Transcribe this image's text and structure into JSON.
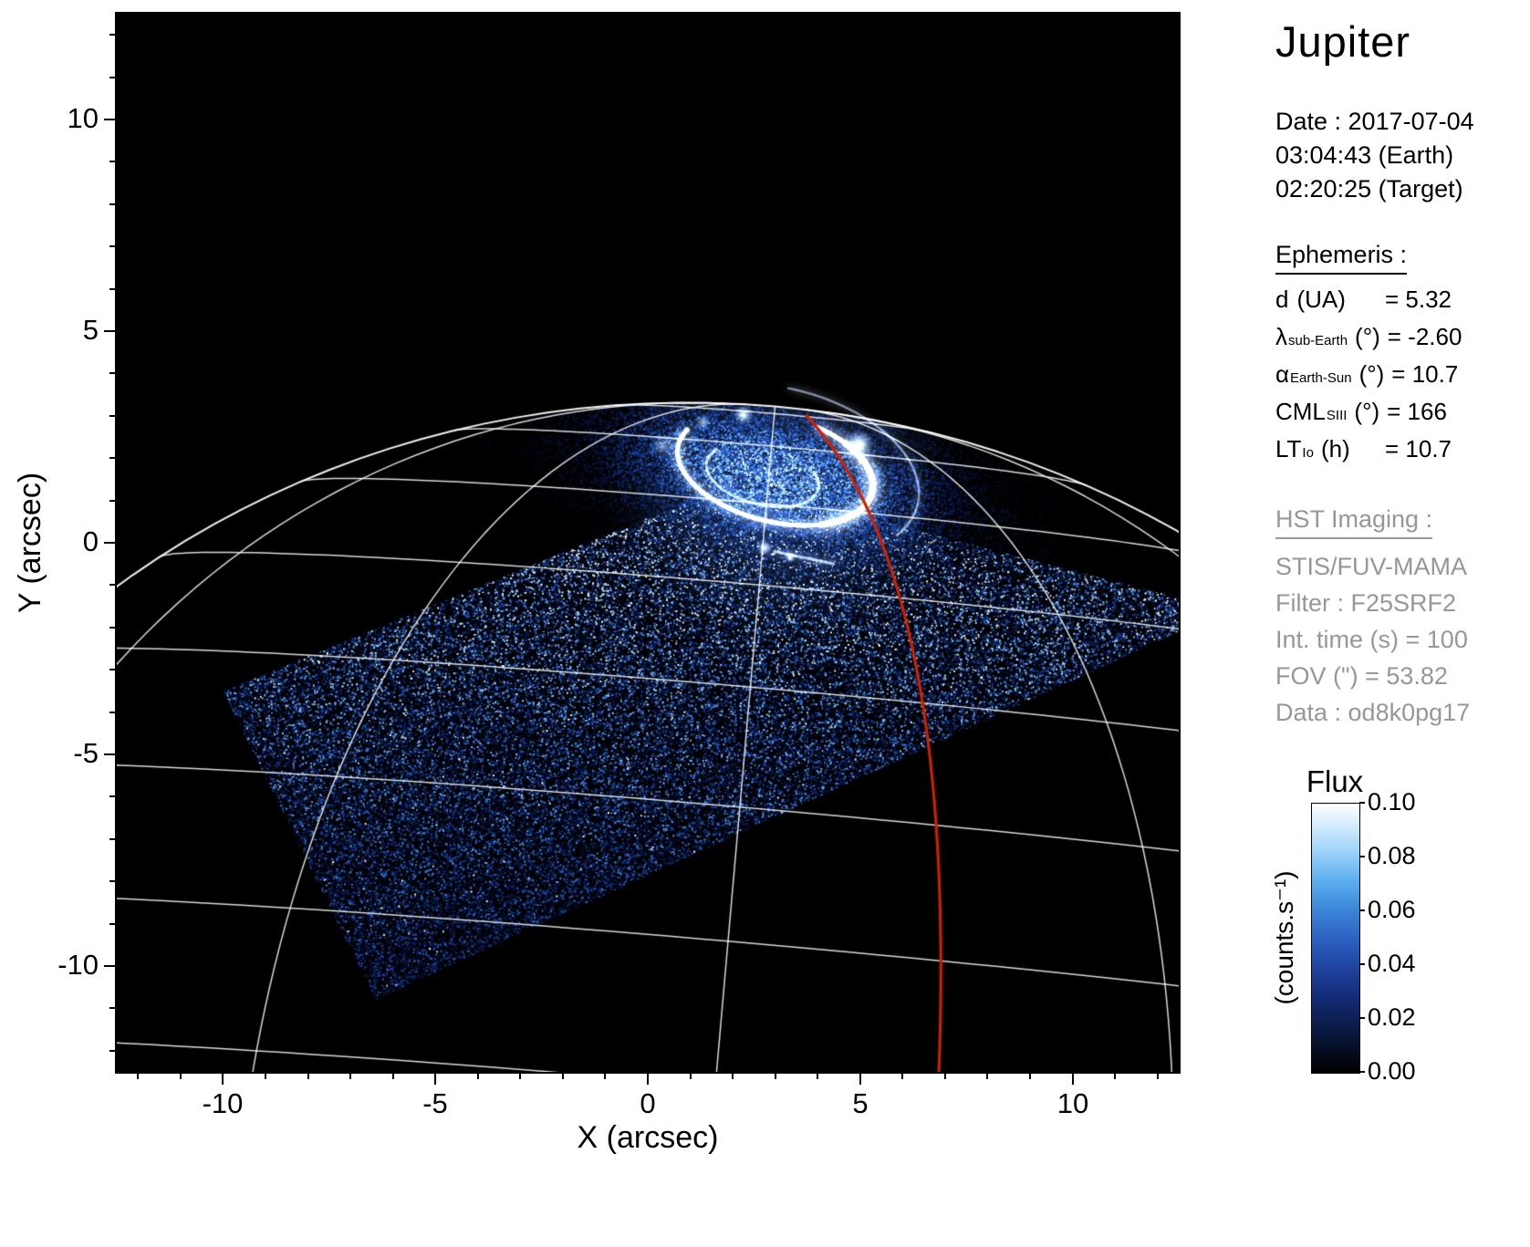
{
  "title": "Jupiter",
  "observation": {
    "date_line": "Date : 2017-07-04",
    "earth_time": "03:04:43 (Earth)",
    "target_time": "02:20:25 (Target)"
  },
  "ephemeris": {
    "heading": "Ephemeris :",
    "rows": [
      {
        "sym": "d",
        "sub": "",
        "unit": "(UA)",
        "val": "= 5.32"
      },
      {
        "sym": "λ",
        "sub": "sub-Earth",
        "unit": "(°)",
        "val": "= -2.60"
      },
      {
        "sym": "α",
        "sub": "Earth-Sun",
        "unit": "(°)",
        "val": "= 10.7"
      },
      {
        "sym": "CML",
        "sub": "SIII",
        "unit": "(°)",
        "val": "= 166"
      },
      {
        "sym": "LT",
        "sub": "Io",
        "unit": "(h)",
        "val": "= 10.7"
      }
    ]
  },
  "hst": {
    "heading": "HST Imaging :",
    "lines": [
      "STIS/FUV-MAMA",
      "Filter : F25SRF2",
      "Int. time (s) = 100",
      "FOV (\") = 53.82",
      "Data : od8k0pg17"
    ]
  },
  "colorbar": {
    "title": "Flux",
    "unit": "(counts.s⁻¹)",
    "tick_labels": [
      "0.10",
      "0.08",
      "0.06",
      "0.04",
      "0.02",
      "0.00"
    ]
  },
  "chart_data": {
    "type": "heatmap",
    "title": "Jupiter",
    "xlabel": "X (arcsec)",
    "ylabel": "Y (arcsec)",
    "xlim": [
      -12.5,
      12.5
    ],
    "ylim": [
      -12.5,
      12.5
    ],
    "xticks": [
      -10,
      -5,
      0,
      5,
      10
    ],
    "yticks": [
      10,
      5,
      0,
      -5,
      -10
    ],
    "xtick_labels": [
      "-10",
      "-5",
      "0",
      "5",
      "10"
    ],
    "ytick_labels": [
      "10",
      "5",
      "0",
      "-5",
      "-10"
    ],
    "grid": false,
    "colorbar": {
      "label": "Flux",
      "unit": "(counts.s⁻¹)",
      "range": [
        0.0,
        0.1
      ],
      "ticks": [
        0.1,
        0.08,
        0.06,
        0.04,
        0.02,
        0.0
      ]
    },
    "description": "HST STIS/FUV-MAMA far-ultraviolet image of Jupiter north polar aurora with planetary graticule, STIS field-of-view noise square, auroral oval emission near (3,2) arcsec, and red Io-footprint meridian track",
    "render": {
      "planet": {
        "cx": 1.2,
        "cy": -17.3,
        "a": 22.0,
        "b": 20.6,
        "tilt_deg": -2.6,
        "pa_deg": -5,
        "lats": [
          10,
          20,
          30,
          40,
          50,
          60,
          70,
          80
        ],
        "lon_step_deg": 30
      },
      "fov_polygon": [
        [
          -10.0,
          -3.5
        ],
        [
          2.0,
          1.4
        ],
        [
          12.5,
          -1.3
        ],
        [
          12.5,
          -2.1
        ],
        [
          -6.4,
          -10.8
        ]
      ],
      "noise": {
        "n": 115000,
        "sparkle": 0.005
      },
      "aurora": {
        "cloud": {
          "center": [
            3.0,
            1.6
          ],
          "sx": 2.7,
          "sy": 1.05,
          "rot": -12,
          "n": 16000
        },
        "halo": {
          "center": [
            3.1,
            1.6
          ],
          "r": 4.2,
          "color": "90,140,230",
          "alpha": 0.3
        },
        "arcs": [
          {
            "c": [
              3.0,
              1.75
            ],
            "rx": 2.35,
            "ry": 1.25,
            "rot": -14,
            "a0": -200,
            "a1": 75,
            "w": 5,
            "alpha": 0.95,
            "blur": 12,
            "color": "#eaf4ff"
          },
          {
            "c": [
              3.1,
              1.7
            ],
            "rx": 3.35,
            "ry": 1.95,
            "rot": -14,
            "a0": -25,
            "a1": 95,
            "w": 2.5,
            "alpha": 0.5,
            "blur": 8,
            "color": "#cfe6ff"
          },
          {
            "c": [
              2.7,
              1.6
            ],
            "rx": 1.35,
            "ry": 0.7,
            "rot": -14,
            "a0": 150,
            "a1": 395,
            "w": 3,
            "alpha": 0.55,
            "blur": 8,
            "color": "#d8ecff"
          },
          {
            "c": [
              3.0,
              1.75
            ],
            "rx": 2.35,
            "ry": 1.25,
            "rot": -14,
            "a0": -55,
            "a1": 55,
            "w": 7,
            "alpha": 1.0,
            "blur": 18,
            "color": "#ffffff"
          }
        ],
        "blobs": [
          [
            2.25,
            3.02,
            0.24,
            1.0
          ],
          [
            1.3,
            2.85,
            0.2,
            0.6
          ],
          [
            0.35,
            2.3,
            0.3,
            0.5
          ],
          [
            5.0,
            2.35,
            0.33,
            0.9
          ],
          [
            2.75,
            -0.12,
            0.2,
            1.0
          ],
          [
            3.35,
            -0.33,
            0.16,
            0.8
          ]
        ],
        "streaks": [
          [
            2.95,
            -0.2,
            4.4,
            -0.5,
            3,
            0.55
          ]
        ]
      },
      "io_track": {
        "p0": [
          3.72,
          3.02
        ],
        "p1": [
          7.3,
          -0.8
        ],
        "p2": [
          6.85,
          -12.6
        ],
        "color": "#cc2200",
        "width": 3.2
      }
    }
  }
}
